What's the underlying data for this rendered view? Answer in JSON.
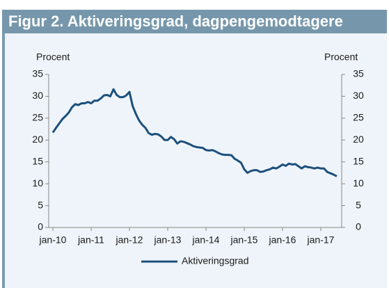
{
  "chart_data": {
    "type": "line",
    "title": "Figur 2. Aktiveringsgrad, dagpengemodtagere",
    "y_label": "Procent",
    "y2_label": "Procent",
    "categories": [
      "jan-10",
      null,
      null,
      null,
      null,
      null,
      null,
      null,
      null,
      null,
      null,
      null,
      "jan-11",
      null,
      null,
      null,
      null,
      null,
      null,
      null,
      null,
      null,
      null,
      null,
      "jan-12",
      null,
      null,
      null,
      null,
      null,
      null,
      null,
      null,
      null,
      null,
      null,
      "jan-13",
      null,
      null,
      null,
      null,
      null,
      null,
      null,
      null,
      null,
      null,
      null,
      "jan-14",
      null,
      null,
      null,
      null,
      null,
      null,
      null,
      null,
      null,
      null,
      null,
      "jan-15",
      null,
      null,
      null,
      null,
      null,
      null,
      null,
      null,
      null,
      null,
      null,
      "jan-16",
      null,
      null,
      null,
      null,
      null,
      null,
      null,
      null,
      null,
      null,
      null,
      "jan-17",
      null,
      null,
      null,
      null,
      null
    ],
    "series": [
      {
        "name": "Aktiveringsgrad",
        "color": "#1d4f7c",
        "values": [
          21.7,
          22.8,
          23.8,
          24.8,
          25.5,
          26.3,
          27.5,
          28.2,
          28.0,
          28.4,
          28.4,
          28.7,
          28.4,
          29.0,
          29.0,
          29.5,
          30.2,
          30.3,
          30.0,
          31.6,
          30.3,
          29.8,
          29.8,
          30.2,
          31.0,
          27.8,
          26.0,
          24.5,
          23.5,
          22.8,
          21.6,
          21.2,
          21.4,
          21.3,
          20.8,
          20.0,
          20.0,
          20.7,
          20.2,
          19.2,
          19.7,
          19.6,
          19.3,
          19.0,
          18.6,
          18.4,
          18.3,
          18.2,
          17.7,
          17.6,
          17.7,
          17.4,
          17.0,
          16.7,
          16.6,
          16.6,
          16.5,
          15.7,
          15.3,
          14.8,
          13.3,
          12.5,
          12.9,
          13.1,
          13.1,
          12.7,
          12.8,
          13.1,
          13.3,
          13.7,
          13.5,
          13.9,
          14.4,
          14.1,
          14.6,
          14.4,
          14.5,
          14.0,
          13.5,
          14.0,
          13.8,
          13.7,
          13.5,
          13.7,
          13.5,
          13.5,
          12.7,
          12.4,
          12.1,
          11.7
        ]
      }
    ],
    "ylim": [
      0,
      35
    ],
    "yticks": [
      0,
      5,
      10,
      15,
      20,
      25,
      30,
      35
    ],
    "y2lim": [
      0,
      35
    ],
    "y2ticks": [
      0,
      5,
      10,
      15,
      20,
      25,
      30,
      35
    ],
    "grid": false,
    "legend": "bottom"
  }
}
